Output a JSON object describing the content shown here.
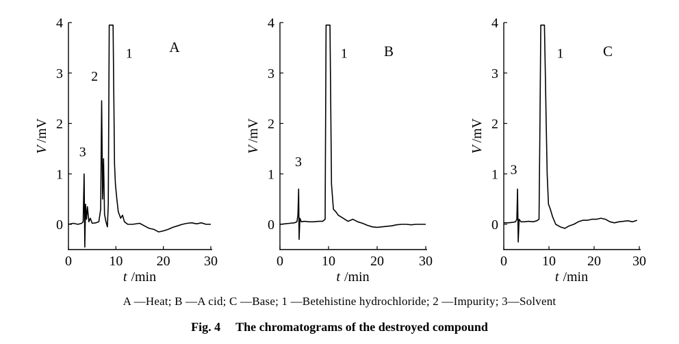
{
  "chart_data": [
    {
      "type": "line",
      "panel_label": "A",
      "xlabel_var": "t",
      "xlabel_unit": "/min",
      "ylabel_var": "V",
      "ylabel_unit": "/mV",
      "xlim": [
        0,
        30
      ],
      "ylim": [
        -0.5,
        4
      ],
      "xticks": [
        0,
        10,
        20,
        30
      ],
      "yticks": [
        0,
        1,
        2,
        3,
        4
      ],
      "peak_labels": [
        {
          "text": "3",
          "x": 3.0,
          "y": 1.35
        },
        {
          "text": "2",
          "x": 5.5,
          "y": 2.85
        },
        {
          "text": "1",
          "x": 12.8,
          "y": 3.3
        }
      ],
      "series": [
        {
          "values": [
            [
              0,
              0
            ],
            [
              1,
              0.02
            ],
            [
              2,
              0.0
            ],
            [
              2.8,
              0.02
            ],
            [
              3.1,
              0.05
            ],
            [
              3.3,
              1.0
            ],
            [
              3.45,
              -0.45
            ],
            [
              3.6,
              0.4
            ],
            [
              3.8,
              0.1
            ],
            [
              4.0,
              0.35
            ],
            [
              4.3,
              0.05
            ],
            [
              4.6,
              0.12
            ],
            [
              5.0,
              0.02
            ],
            [
              5.8,
              0.03
            ],
            [
              6.4,
              0.05
            ],
            [
              6.8,
              0.3
            ],
            [
              7.0,
              2.45
            ],
            [
              7.2,
              0.5
            ],
            [
              7.4,
              1.3
            ],
            [
              7.6,
              0.2
            ],
            [
              7.9,
              0.05
            ],
            [
              8.2,
              -0.05
            ],
            [
              8.4,
              0.4
            ],
            [
              8.6,
              3.95
            ],
            [
              9.4,
              3.95
            ],
            [
              9.7,
              1.2
            ],
            [
              9.9,
              0.8
            ],
            [
              10.2,
              0.5
            ],
            [
              10.5,
              0.25
            ],
            [
              11.0,
              0.12
            ],
            [
              11.4,
              0.18
            ],
            [
              11.8,
              0.05
            ],
            [
              12.5,
              0.0
            ],
            [
              13.5,
              0.0
            ],
            [
              15,
              0.02
            ],
            [
              16,
              -0.03
            ],
            [
              17,
              -0.08
            ],
            [
              18,
              -0.1
            ],
            [
              19,
              -0.15
            ],
            [
              20,
              -0.13
            ],
            [
              21,
              -0.1
            ],
            [
              22,
              -0.06
            ],
            [
              23,
              -0.03
            ],
            [
              24,
              0.0
            ],
            [
              25,
              0.02
            ],
            [
              26,
              0.03
            ],
            [
              27,
              0.01
            ],
            [
              28,
              0.03
            ],
            [
              29,
              0.0
            ],
            [
              30,
              0.0
            ]
          ]
        }
      ]
    },
    {
      "type": "line",
      "panel_label": "B",
      "xlabel_var": "t",
      "xlabel_unit": "/min",
      "ylabel_var": "V",
      "ylabel_unit": "/mV",
      "xlim": [
        0,
        30
      ],
      "ylim": [
        -0.5,
        4
      ],
      "xticks": [
        0,
        10,
        20,
        30
      ],
      "yticks": [
        0,
        1,
        2,
        3,
        4
      ],
      "peak_labels": [
        {
          "text": "3",
          "x": 3.8,
          "y": 1.15
        },
        {
          "text": "1",
          "x": 13.2,
          "y": 3.3
        }
      ],
      "series": [
        {
          "values": [
            [
              0,
              0
            ],
            [
              1,
              0.01
            ],
            [
              2,
              0.02
            ],
            [
              3,
              0.03
            ],
            [
              3.5,
              0.05
            ],
            [
              3.7,
              0.2
            ],
            [
              3.85,
              0.7
            ],
            [
              3.95,
              -0.3
            ],
            [
              4.1,
              0.12
            ],
            [
              4.4,
              0.05
            ],
            [
              5,
              0.06
            ],
            [
              6,
              0.05
            ],
            [
              7,
              0.05
            ],
            [
              8,
              0.06
            ],
            [
              8.8,
              0.06
            ],
            [
              9.3,
              0.1
            ],
            [
              9.5,
              3.95
            ],
            [
              10.3,
              3.95
            ],
            [
              10.6,
              0.8
            ],
            [
              11.0,
              0.3
            ],
            [
              11.5,
              0.25
            ],
            [
              12,
              0.18
            ],
            [
              13,
              0.12
            ],
            [
              14,
              0.06
            ],
            [
              15,
              0.1
            ],
            [
              16,
              0.05
            ],
            [
              17,
              0.02
            ],
            [
              18,
              -0.02
            ],
            [
              19,
              -0.05
            ],
            [
              20,
              -0.06
            ],
            [
              21,
              -0.05
            ],
            [
              22,
              -0.04
            ],
            [
              23,
              -0.03
            ],
            [
              24,
              -0.01
            ],
            [
              25,
              0.0
            ],
            [
              26,
              0.0
            ],
            [
              27,
              -0.01
            ],
            [
              28,
              0.0
            ],
            [
              29,
              0.0
            ],
            [
              30,
              0.0
            ]
          ]
        }
      ]
    },
    {
      "type": "line",
      "panel_label": "C",
      "xlabel_var": "t",
      "xlabel_unit": "/min",
      "ylabel_var": "V",
      "ylabel_unit": "/mV",
      "xlim": [
        0,
        30
      ],
      "ylim": [
        -0.5,
        4
      ],
      "xticks": [
        0,
        10,
        20,
        30
      ],
      "yticks": [
        0,
        1,
        2,
        3,
        4
      ],
      "peak_labels": [
        {
          "text": "3",
          "x": 2.2,
          "y": 1.0
        },
        {
          "text": "1",
          "x": 12.5,
          "y": 3.3
        }
      ],
      "series": [
        {
          "values": [
            [
              0,
              0.03
            ],
            [
              1,
              0.03
            ],
            [
              2,
              0.04
            ],
            [
              2.6,
              0.05
            ],
            [
              2.9,
              0.1
            ],
            [
              3.05,
              0.7
            ],
            [
              3.2,
              -0.35
            ],
            [
              3.4,
              0.1
            ],
            [
              3.8,
              0.05
            ],
            [
              4.5,
              0.05
            ],
            [
              5.5,
              0.06
            ],
            [
              6.5,
              0.05
            ],
            [
              7.3,
              0.07
            ],
            [
              7.8,
              0.1
            ],
            [
              8.0,
              1.9
            ],
            [
              8.2,
              3.95
            ],
            [
              9.0,
              3.95
            ],
            [
              9.2,
              3.0
            ],
            [
              9.4,
              2.0
            ],
            [
              9.6,
              1.0
            ],
            [
              9.9,
              0.4
            ],
            [
              10.3,
              0.3
            ],
            [
              10.8,
              0.15
            ],
            [
              11.5,
              0.0
            ],
            [
              12.5,
              -0.05
            ],
            [
              13.5,
              -0.08
            ],
            [
              14.5,
              -0.03
            ],
            [
              15.5,
              0.0
            ],
            [
              16.5,
              0.05
            ],
            [
              17.5,
              0.08
            ],
            [
              18.5,
              0.08
            ],
            [
              19.5,
              0.1
            ],
            [
              20.5,
              0.1
            ],
            [
              21.5,
              0.12
            ],
            [
              22.5,
              0.1
            ],
            [
              23.5,
              0.05
            ],
            [
              24.5,
              0.03
            ],
            [
              25.5,
              0.05
            ],
            [
              26.5,
              0.06
            ],
            [
              27.5,
              0.07
            ],
            [
              28.5,
              0.05
            ],
            [
              29.5,
              0.08
            ]
          ]
        }
      ]
    }
  ],
  "legend_text": "A —Heat; B —A cid; C —Base; 1 —Betehistine hydrochloride; 2 —Impurity; 3—Solvent",
  "caption": {
    "fig_no": "Fig. 4",
    "title": "The chromatograms of the destroyed compound"
  }
}
